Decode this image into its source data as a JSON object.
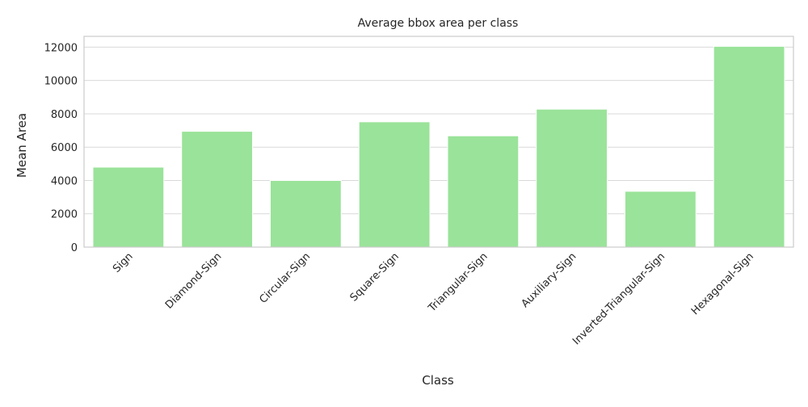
{
  "chart_data": {
    "type": "bar",
    "title": "Average bbox area per class",
    "xlabel": "Class",
    "ylabel": "Mean Area",
    "categories": [
      "Sign",
      "Diamond-Sign",
      "Circular-Sign",
      "Square-Sign",
      "Triangular-Sign",
      "Auxiliary-Sign",
      "Inverted-Triangular-Sign",
      "Hexagonal-Sign"
    ],
    "values": [
      4800,
      6950,
      4000,
      7520,
      6680,
      8280,
      3350,
      12050
    ],
    "yticks": [
      0,
      2000,
      4000,
      6000,
      8000,
      10000,
      12000
    ],
    "ylim": [
      0,
      12650
    ],
    "bar_color": "#9ae39a",
    "grid": true
  }
}
